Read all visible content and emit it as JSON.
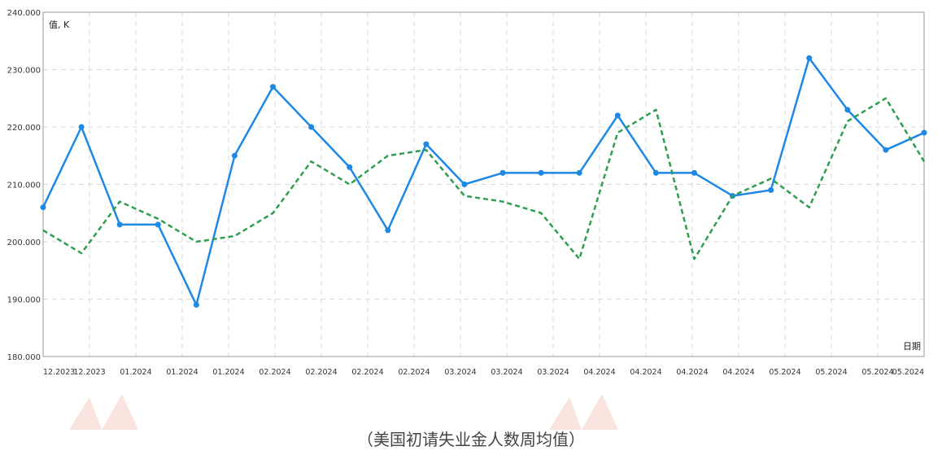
{
  "chart_data": {
    "type": "line",
    "ylabel": "值, K",
    "xlabel": "日期",
    "ylim": [
      180,
      240
    ],
    "y_ticks": [
      "180.000",
      "190.000",
      "200.000",
      "210.000",
      "220.000",
      "230.000",
      "240.000"
    ],
    "x_tick_labels": [
      "12.2023",
      "12.2023",
      "01.2024",
      "01.2024",
      "01.2024",
      "02.2024",
      "02.2024",
      "02.2024",
      "02.2024",
      "03.2024",
      "03.2024",
      "03.2024",
      "04.2024",
      "04.2024",
      "04.2024",
      "04.2024",
      "05.2024",
      "05.2024",
      "05.2024",
      "05.2024"
    ],
    "grid": true,
    "series": [
      {
        "style": "solid",
        "color": "#1e88e5",
        "values": [
          206,
          220,
          203,
          203,
          189,
          215,
          227,
          220,
          213,
          202,
          217,
          210,
          212,
          212,
          212,
          222,
          212,
          212,
          208,
          209,
          232,
          223,
          216,
          219
        ]
      },
      {
        "style": "dashed",
        "color": "#2e9e4f",
        "values": [
          202,
          198,
          207,
          204,
          200,
          201,
          205,
          214,
          210,
          215,
          216,
          208,
          207,
          205,
          197,
          219,
          223,
          197,
          208,
          211,
          206,
          221,
          225,
          214
        ]
      }
    ]
  },
  "caption": "（美国初请失业金人数周均值）",
  "colors": {
    "grid": "#d9d9d9",
    "axis": "#999999",
    "watermark": "#e8684a"
  }
}
